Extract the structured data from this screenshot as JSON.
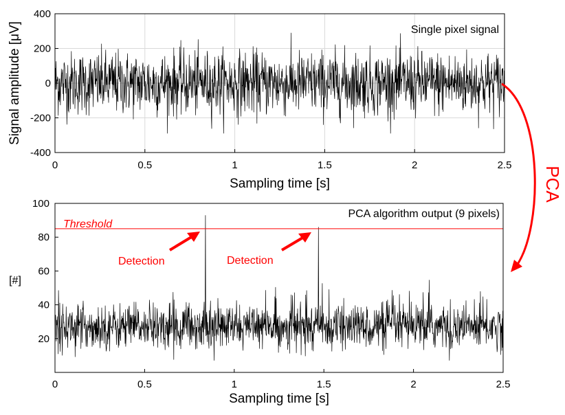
{
  "chart_data": [
    {
      "type": "line",
      "title": "Single pixel signal",
      "xlabel": "Sampling time [s]",
      "ylabel": "Signal amplitude [μV]",
      "xlim": [
        0,
        2.5
      ],
      "ylim": [
        -400,
        400
      ],
      "xticks": [
        "0",
        "0.5",
        "1",
        "1.5",
        "2",
        "2.5"
      ],
      "yticks": [
        "400",
        "200",
        "0",
        "-200",
        "-400"
      ],
      "grid": true,
      "series": [
        {
          "typical_range": [
            -200,
            200
          ],
          "peak_range": [
            -290,
            290
          ],
          "mean": 0
        }
      ]
    },
    {
      "type": "line",
      "title": "PCA algorithm output (9 pixels)",
      "xlabel": "Sampling time [s]",
      "ylabel": "[#]",
      "xlim": [
        0,
        2.5
      ],
      "ylim": [
        0,
        100
      ],
      "xticks": [
        "0",
        "0.5",
        "1",
        "1.5",
        "2",
        "2.5"
      ],
      "yticks": [
        "100",
        "80",
        "60",
        "40",
        "20"
      ],
      "grid": false,
      "threshold": {
        "label": "Threshold",
        "value": 85,
        "color": "#ff0000"
      },
      "series": [
        {
          "typical_range": [
            15,
            45
          ],
          "min": 7,
          "mean": 27
        }
      ],
      "detections": [
        {
          "label": "Detection",
          "time": 0.84,
          "value": 93
        },
        {
          "label": "Detection",
          "time": 1.47,
          "value": 86
        }
      ]
    }
  ],
  "annotation": {
    "label": "PCA",
    "color": "#ff0000"
  }
}
